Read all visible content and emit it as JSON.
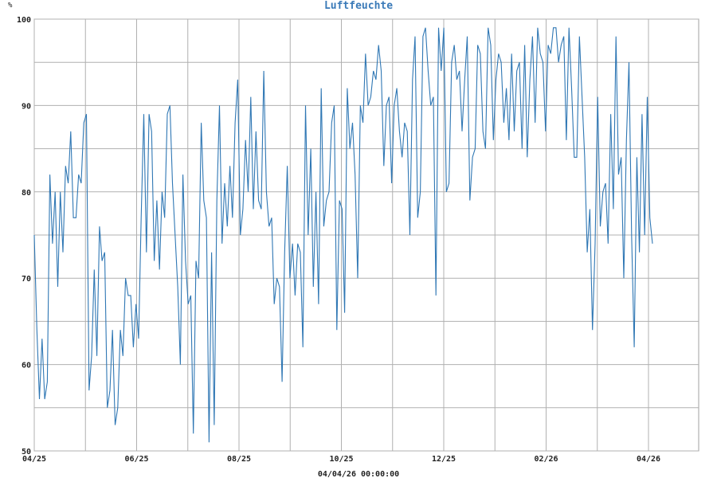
{
  "chart_data": {
    "type": "line",
    "title": "Luftfeuchte",
    "ylabel": "%",
    "footer": "04/04/26 00:00:00",
    "ylim": [
      50,
      100
    ],
    "y_ticks": [
      50,
      60,
      70,
      80,
      90,
      100
    ],
    "x_tick_labels": [
      "04/25",
      "06/25",
      "08/25",
      "10/25",
      "12/25",
      "02/26",
      "04/26"
    ],
    "grid": true,
    "colors": {
      "line": "#2f77b4",
      "grid": "#b0b0b0",
      "title": "#3a7ab8"
    },
    "series": [
      {
        "values": [
          75,
          64,
          56,
          63,
          56,
          58,
          82,
          74,
          80,
          69,
          80,
          73,
          83,
          81,
          87,
          77,
          77,
          82,
          81,
          88,
          89,
          57,
          61,
          71,
          61,
          76,
          72,
          73,
          55,
          57,
          64,
          53,
          55,
          64,
          61,
          70,
          68,
          68,
          62,
          67,
          63,
          77,
          89,
          73,
          89,
          87,
          72,
          79,
          71,
          80,
          77,
          89,
          90,
          81,
          75,
          69,
          60,
          82,
          72,
          67,
          68,
          52,
          72,
          70,
          88,
          79,
          77,
          51,
          73,
          53,
          79,
          90,
          74,
          81,
          76,
          83,
          77,
          88,
          93,
          75,
          78,
          86,
          80,
          91,
          78,
          87,
          79,
          78,
          94,
          80,
          76,
          77,
          67,
          70,
          69,
          58,
          73,
          83,
          70,
          74,
          68,
          74,
          73,
          62,
          90,
          75,
          85,
          69,
          80,
          67,
          92,
          76,
          79,
          80,
          88,
          90,
          64,
          79,
          78,
          66,
          92,
          85,
          88,
          82,
          70,
          90,
          88,
          96,
          90,
          91,
          94,
          93,
          97,
          94,
          83,
          90,
          91,
          81,
          90,
          92,
          87,
          84,
          88,
          87,
          75,
          93,
          98,
          77,
          80,
          98,
          99,
          94,
          90,
          91,
          68,
          99,
          94,
          99,
          80,
          81,
          95,
          97,
          93,
          94,
          87,
          93,
          98,
          79,
          84,
          85,
          97,
          96,
          87,
          85,
          99,
          97,
          86,
          93,
          96,
          95,
          88,
          92,
          86,
          96,
          87,
          94,
          95,
          85,
          97,
          84,
          93,
          98,
          88,
          99,
          96,
          95,
          87,
          97,
          96,
          99,
          99,
          95,
          97,
          98,
          86,
          99,
          92,
          84,
          84,
          98,
          91,
          84,
          73,
          78,
          64,
          74,
          91,
          76,
          80,
          81,
          74,
          89,
          78,
          98,
          82,
          84,
          70,
          86,
          95,
          75,
          62,
          84,
          73,
          89,
          75,
          91,
          77,
          74
        ]
      }
    ]
  }
}
